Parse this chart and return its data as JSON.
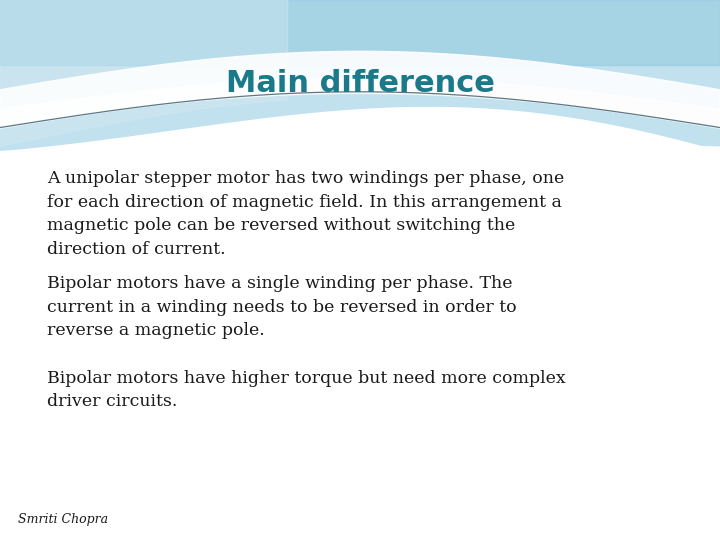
{
  "title": "Main difference",
  "title_color": "#1a7a8a",
  "title_fontsize": 22,
  "body_fontsize": 12.5,
  "body_color": "#1a1a1a",
  "footer_text": "Smriti Chopra",
  "footer_fontsize": 9,
  "paragraphs": [
    "A unipolar stepper motor has two windings per phase, one\nfor each direction of magnetic field. In this arrangement a\nmagnetic pole can be reversed without switching the\ndirection of current.",
    "Bipolar motors have a single winding per phase. The\ncurrent in a winding needs to be reversed in order to\nreverse a magnetic pole.",
    "Bipolar motors have higher torque but need more complex\ndriver circuits."
  ],
  "bg_color": "#ffffff",
  "wave_top_color": "#7fc8df",
  "wave_mid_color": "#aad8e8",
  "wave_light_color": "#d0eaf4"
}
